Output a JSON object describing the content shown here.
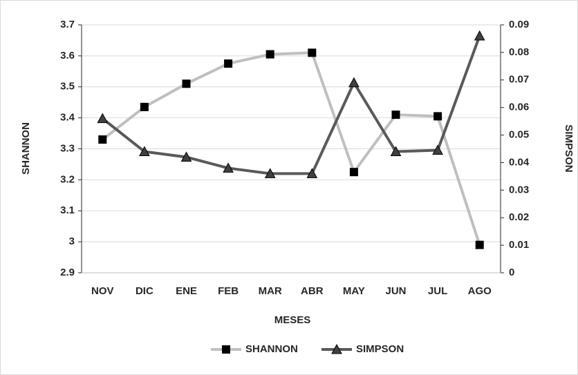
{
  "chart_data": {
    "type": "line",
    "x_label": "MESES",
    "y_label": "SHANNON",
    "y2_label": "SIMPSON",
    "categories": [
      "NOV",
      "DIC",
      "ENE",
      "FEB",
      "MAR",
      "ABR",
      "MAY",
      "JUN",
      "JUL",
      "AGO"
    ],
    "series": [
      {
        "name": "SHANNON",
        "color": "#bfbfbf",
        "marker": "square",
        "marker_color": "#000000",
        "values": [
          3.33,
          3.435,
          3.51,
          3.575,
          3.605,
          3.61,
          3.225,
          3.41,
          3.405,
          2.99
        ]
      },
      {
        "name": "SIMPSON",
        "color": "#595959",
        "marker": "triangle",
        "marker_color": "#404040",
        "axis": "y2",
        "values": [
          0.056,
          0.044,
          0.042,
          0.038,
          0.036,
          0.036,
          0.069,
          0.044,
          0.0445,
          0.086
        ]
      }
    ],
    "ylim": [
      2.9,
      3.7
    ],
    "yticks": [
      2.9,
      3,
      3.1,
      3.2,
      3.3,
      3.4,
      3.5,
      3.6,
      3.7
    ],
    "y2lim": [
      0,
      0.09
    ],
    "y2ticks": [
      0,
      0.01,
      0.02,
      0.03,
      0.04,
      0.05,
      0.06,
      0.07,
      0.08,
      0.09
    ],
    "grid": true,
    "legend": "bottom"
  }
}
